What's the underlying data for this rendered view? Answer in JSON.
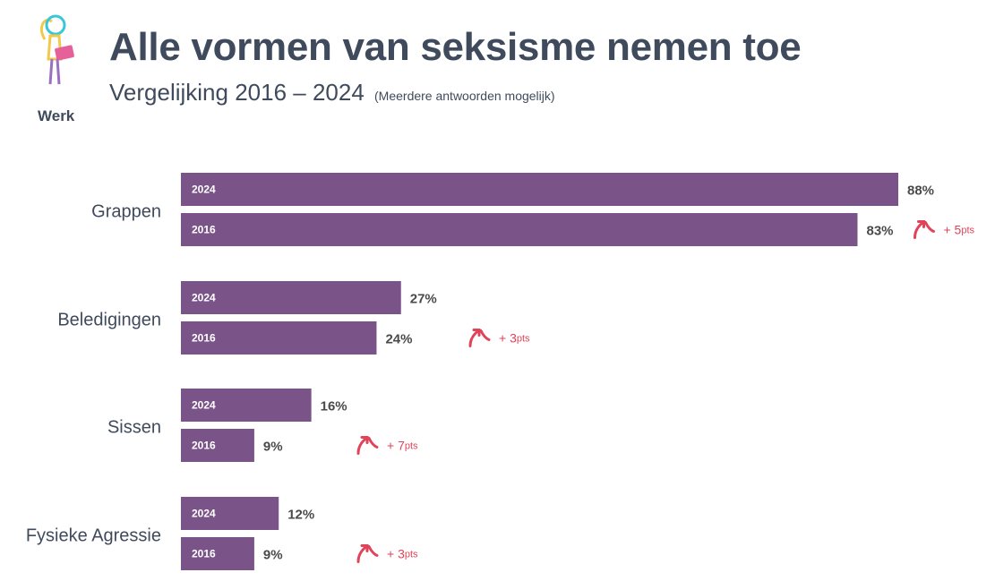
{
  "header": {
    "logo_label": "Werk",
    "title": "Alle vormen van seksisme nemen toe",
    "subtitle": "Vergelijking 2016 – 2024",
    "subtitle_note": "(Meerdere antwoorden mogelijk)"
  },
  "colors": {
    "bar": "#7a5488",
    "text": "#3f4b5c",
    "change": "#e0445a"
  },
  "chart_data": {
    "type": "bar",
    "orientation": "horizontal",
    "categories": [
      "Grappen",
      "Beledigingen",
      "Sissen",
      "Fysieke Agressie"
    ],
    "series": [
      {
        "name": "2024",
        "values": [
          88,
          27,
          16,
          12
        ]
      },
      {
        "name": "2016",
        "values": [
          83,
          24,
          9,
          9
        ]
      }
    ],
    "value_labels": {
      "2024": [
        "88%",
        "27%",
        "16%",
        "12%"
      ],
      "2016": [
        "83%",
        "24%",
        "9%",
        "9%"
      ]
    },
    "change": [
      {
        "prefix": "+ ",
        "value": "5",
        "unit": "pts"
      },
      {
        "prefix": "+ ",
        "value": "3",
        "unit": "pts"
      },
      {
        "prefix": "+ ",
        "value": "7",
        "unit": "pts"
      },
      {
        "prefix": "+ ",
        "value": "3",
        "unit": "pts"
      }
    ],
    "xlim": [
      0,
      88
    ],
    "grid": false,
    "legend": "none"
  }
}
